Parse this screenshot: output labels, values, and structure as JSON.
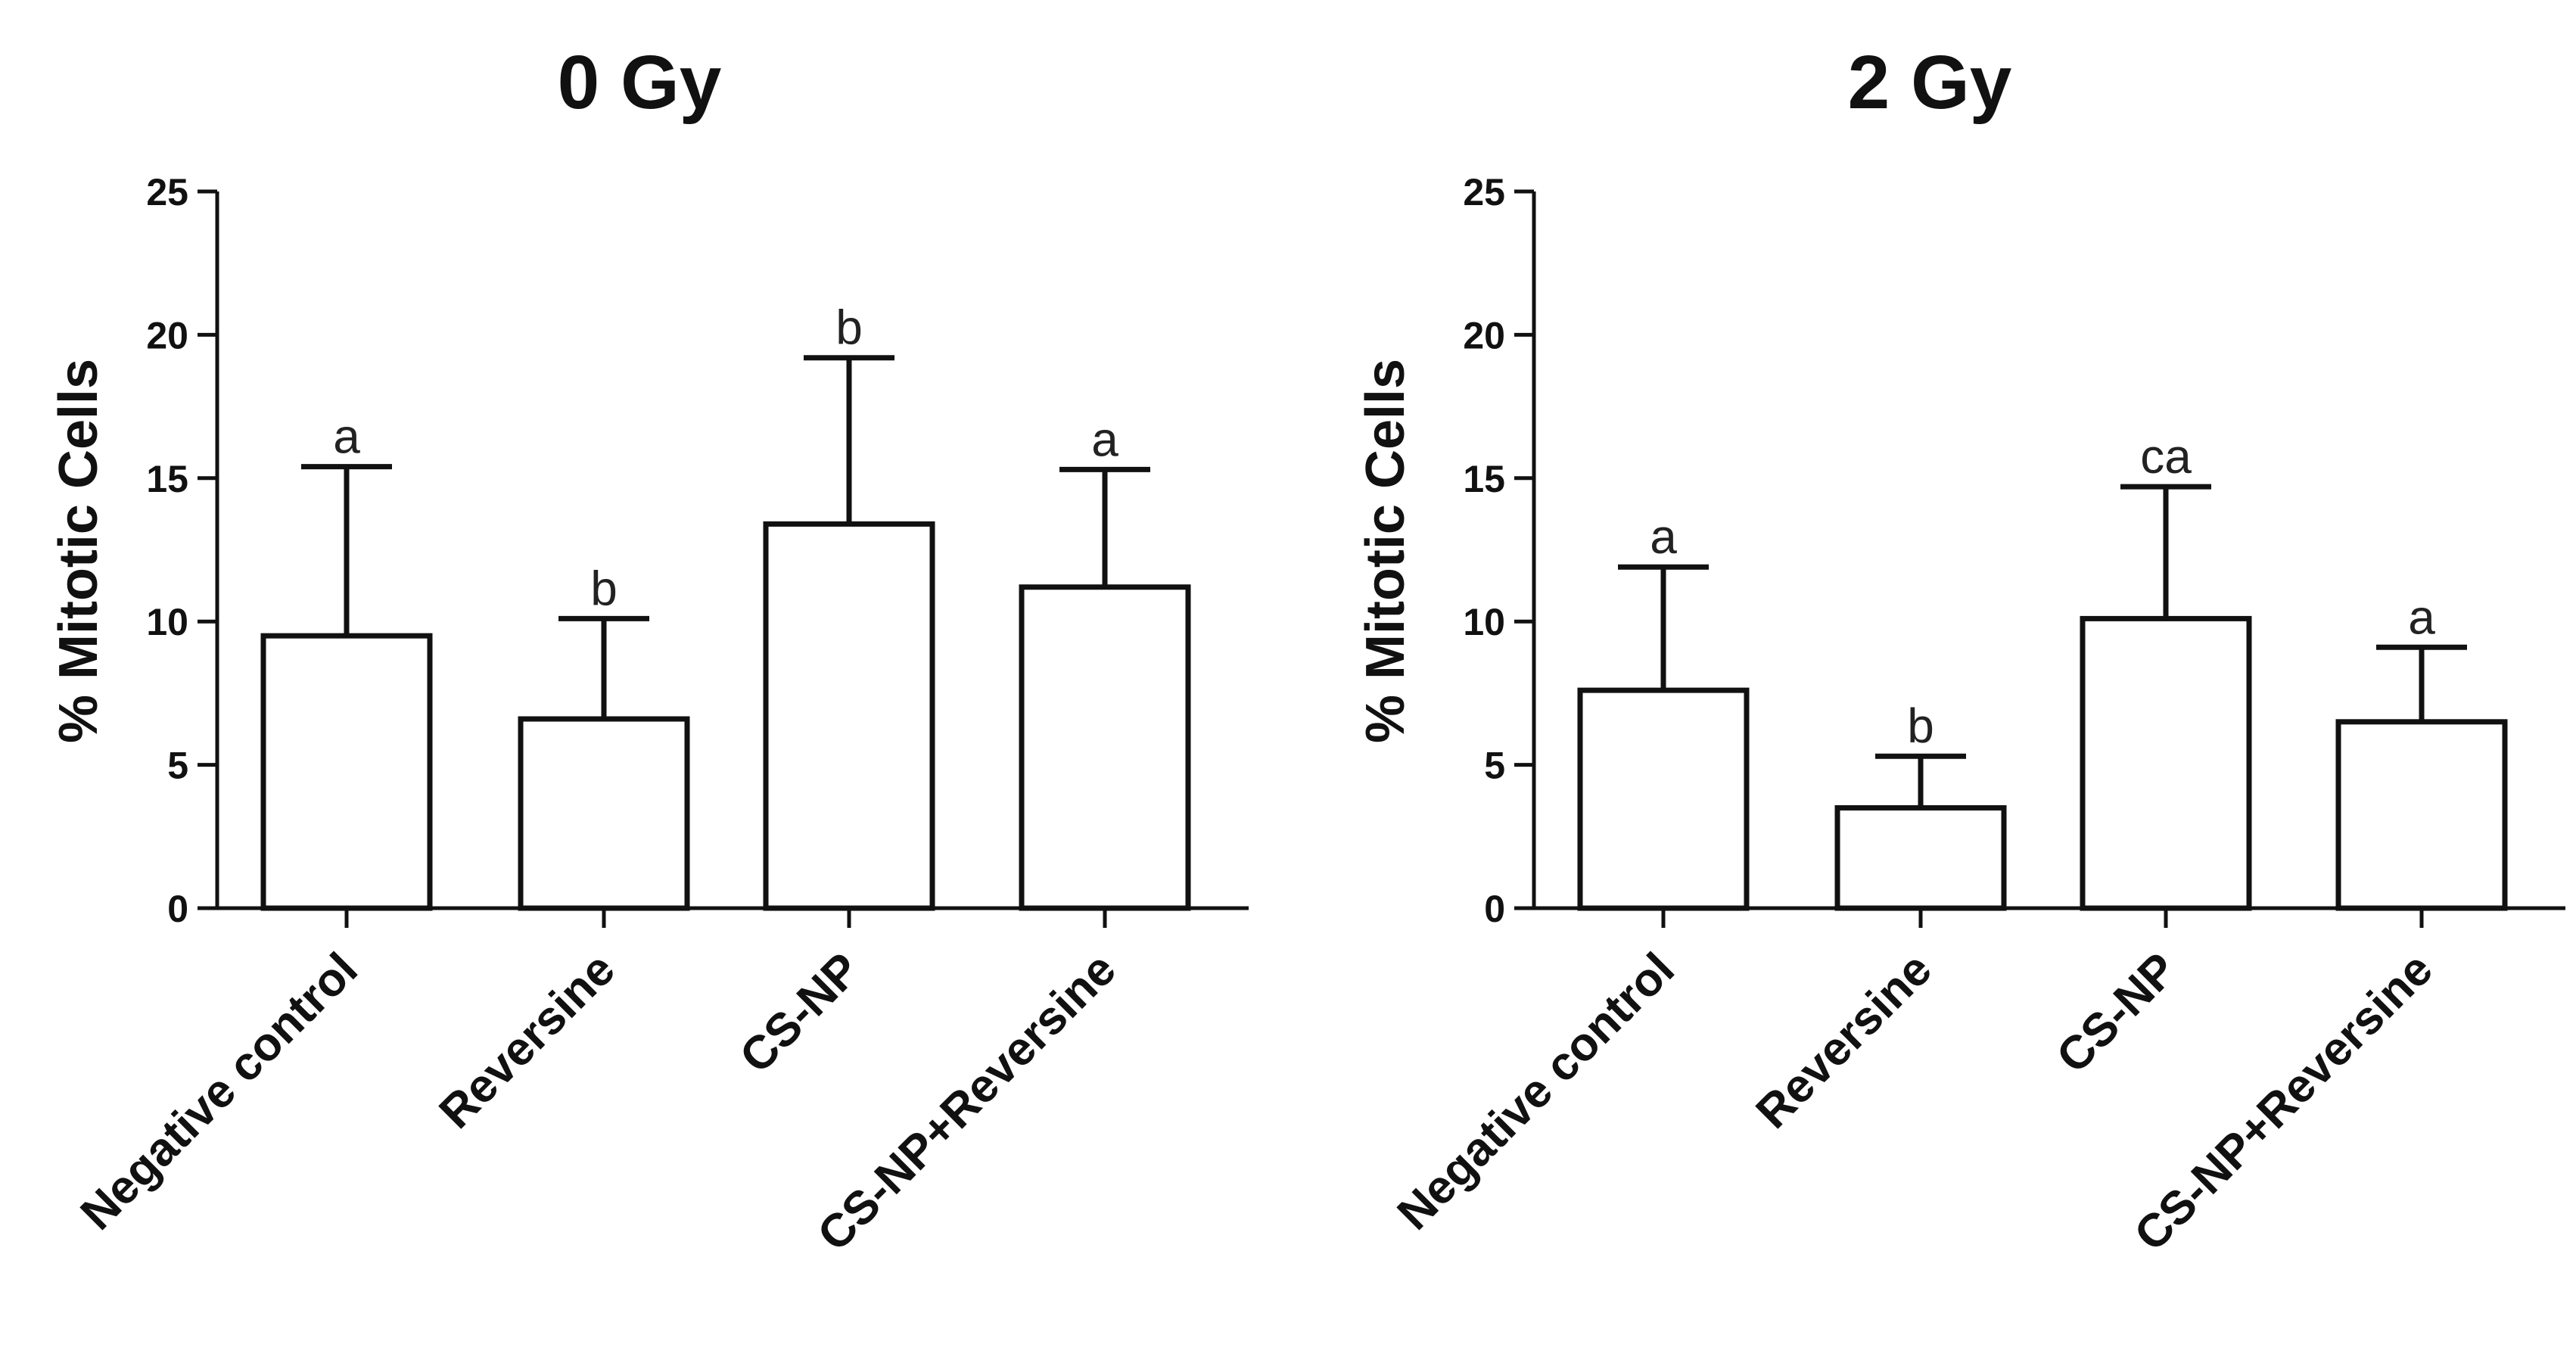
{
  "colors": {
    "axis": "#111111",
    "bar_fill": "#ffffff",
    "bar_stroke": "#111111",
    "text": "#111111"
  },
  "chart_data": [
    {
      "type": "bar",
      "title": "0 Gy",
      "xlabel": "",
      "ylabel": "% Mitotic Cells",
      "ylim": [
        0,
        25
      ],
      "yticks": [
        0,
        5,
        10,
        15,
        20,
        25
      ],
      "categories": [
        "Negative control",
        "Reversine",
        "CS-NP",
        "CS-NP+Reversine"
      ],
      "values": [
        9.5,
        6.6,
        13.4,
        11.2
      ],
      "errors": [
        5.9,
        3.5,
        5.8,
        4.1
      ],
      "significance": [
        "a",
        "b",
        "b",
        "a"
      ],
      "error_bars": "upper only",
      "grid": false
    },
    {
      "type": "bar",
      "title": "2 Gy",
      "xlabel": "",
      "ylabel": "% Mitotic Cells",
      "ylim": [
        0,
        25
      ],
      "yticks": [
        0,
        5,
        10,
        15,
        20,
        25
      ],
      "categories": [
        "Negative control",
        "Reversine",
        "CS-NP",
        "CS-NP+Reversine"
      ],
      "values": [
        7.6,
        3.5,
        10.1,
        6.5
      ],
      "errors": [
        4.3,
        1.8,
        4.6,
        2.6
      ],
      "significance": [
        "a",
        "b",
        "ca",
        "a"
      ],
      "error_bars": "upper only",
      "grid": false
    }
  ]
}
